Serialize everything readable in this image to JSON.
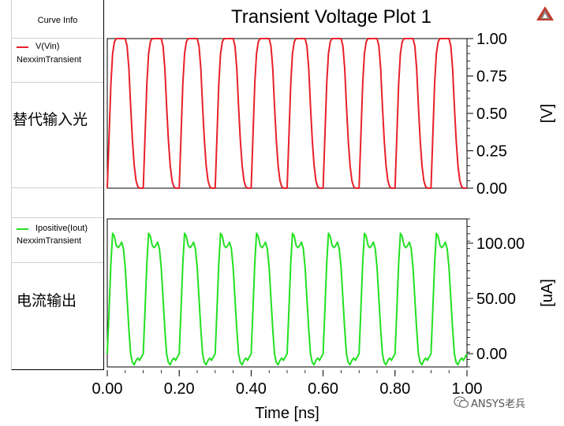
{
  "curve_panel": {
    "header": "Curve Info",
    "legend": [
      {
        "name": "V(Vin)",
        "source": "NexximTransient",
        "color": "#e8202a"
      },
      {
        "name": "Ipositive(Iout)",
        "source": "NexximTransient",
        "color": "#22e022"
      }
    ],
    "annotations": [
      "替代输入光",
      "电流输出"
    ]
  },
  "watermark": {
    "text": "ANSYS老兵"
  },
  "chart_data": {
    "type": "line",
    "title": "Transient Voltage Plot 1",
    "xlabel": "Time [ns]",
    "xlim": [
      0.0,
      1.0
    ],
    "x_ticks": [
      "0.00",
      "0.20",
      "0.40",
      "0.60",
      "0.80",
      "1.00"
    ],
    "grid": false,
    "period_ns": 0.1,
    "panels": [
      {
        "series": [
          {
            "name": "V(Vin)",
            "color": "#e8202a"
          }
        ],
        "ylabel": "[V]",
        "ylim": [
          0.0,
          1.0
        ],
        "y_ticks": [
          "0.00",
          "0.25",
          "0.50",
          "0.75",
          "1.00"
        ],
        "wave_points": [
          [
            0.0,
            0.0
          ],
          [
            0.005,
            0.35
          ],
          [
            0.01,
            0.7
          ],
          [
            0.015,
            0.9
          ],
          [
            0.02,
            0.98
          ],
          [
            0.025,
            1.0
          ],
          [
            0.05,
            1.0
          ],
          [
            0.055,
            0.95
          ],
          [
            0.06,
            0.8
          ],
          [
            0.065,
            0.55
          ],
          [
            0.07,
            0.32
          ],
          [
            0.075,
            0.15
          ],
          [
            0.08,
            0.05
          ],
          [
            0.085,
            0.01
          ],
          [
            0.09,
            0.0
          ],
          [
            0.1,
            0.0
          ]
        ]
      },
      {
        "series": [
          {
            "name": "Ipositive(Iout)",
            "color": "#22e022"
          }
        ],
        "ylabel": "[uA]",
        "ylim": [
          -12,
          122
        ],
        "y_ticks": [
          "0.00",
          "50.00",
          "100.00"
        ],
        "y_tick_values": [
          0,
          50,
          100
        ],
        "wave_points": [
          [
            0.0,
            0
          ],
          [
            0.005,
            40
          ],
          [
            0.01,
            82
          ],
          [
            0.015,
            109
          ],
          [
            0.02,
            106
          ],
          [
            0.025,
            98
          ],
          [
            0.03,
            96
          ],
          [
            0.035,
            98
          ],
          [
            0.04,
            101
          ],
          [
            0.045,
            95
          ],
          [
            0.05,
            78
          ],
          [
            0.055,
            50
          ],
          [
            0.06,
            22
          ],
          [
            0.065,
            0
          ],
          [
            0.07,
            -8
          ],
          [
            0.075,
            -10
          ],
          [
            0.08,
            -6
          ],
          [
            0.085,
            -4
          ],
          [
            0.09,
            -6
          ],
          [
            0.095,
            -3
          ],
          [
            0.1,
            0
          ]
        ]
      }
    ]
  }
}
